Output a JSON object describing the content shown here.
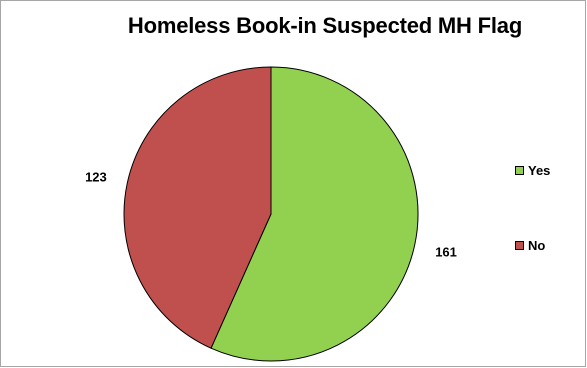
{
  "chart_data": {
    "type": "pie",
    "title": "Homeless Book-in Suspected MH Flag",
    "categories": [
      "Yes",
      "No"
    ],
    "values": [
      161,
      123
    ],
    "colors": [
      "#92d050",
      "#c0504d"
    ],
    "legend_position": "right",
    "start_angle_deg": 0,
    "direction": "clockwise"
  }
}
